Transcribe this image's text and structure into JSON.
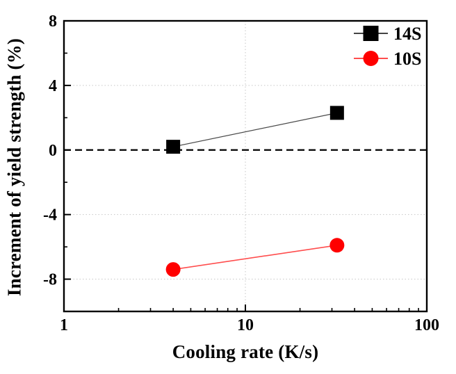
{
  "chart_data": {
    "type": "line",
    "title": "",
    "xlabel": "Cooling rate (K/s)",
    "ylabel": "Increment of yield strength (%)",
    "x_scale": "log",
    "xlim": [
      1,
      100
    ],
    "ylim": [
      -10,
      8
    ],
    "x_major_ticks": [
      1,
      10,
      100
    ],
    "x_major_tick_labels": [
      "1",
      "10",
      "100"
    ],
    "y_major_ticks": [
      8,
      4,
      0,
      -4,
      -8
    ],
    "y_major_tick_labels": [
      "8",
      "4",
      "0",
      "-4",
      "-8"
    ],
    "y_minor_ticks": [
      6,
      2,
      -2,
      -6
    ],
    "grid": {
      "show": true,
      "style": "dotted",
      "color": "#c6c6c6",
      "at": "major-ticks"
    },
    "zero_line": {
      "y": 0,
      "style": "dashed",
      "color": "#000000"
    },
    "legend": {
      "position": "top-right",
      "frame": false,
      "entries": [
        "14S",
        "10S"
      ]
    },
    "background": "#ffffff",
    "frame_color": "#000000",
    "text_color": "#000000",
    "series": [
      {
        "name": "14S",
        "marker": "square",
        "marker_color": "#000000",
        "line_color": "#4a4a4a",
        "x": [
          4,
          32
        ],
        "y": [
          0.2,
          2.3
        ]
      },
      {
        "name": "10S",
        "marker": "circle",
        "marker_color": "#ff0000",
        "line_color": "#ff4d4d",
        "x": [
          4,
          32
        ],
        "y": [
          -7.4,
          -5.9
        ]
      }
    ]
  }
}
